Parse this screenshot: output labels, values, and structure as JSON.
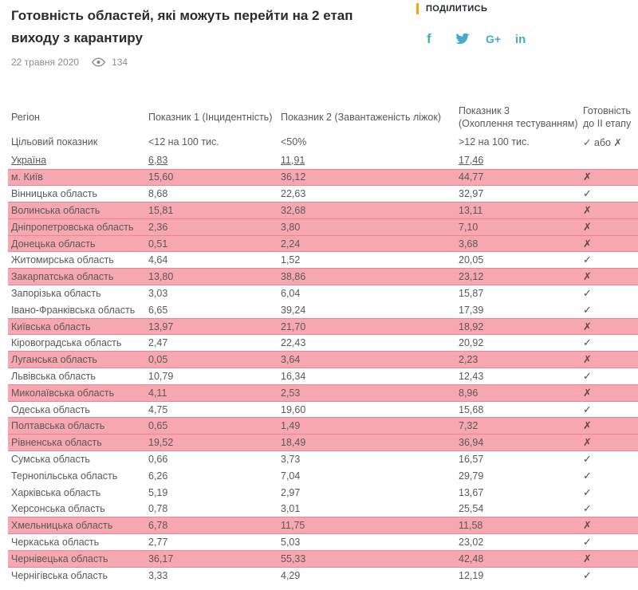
{
  "page": {
    "title": "Готовність областей, які можуть перейти на 2 етап виходу з карантиру",
    "date": "22 травня 2020",
    "views": "134"
  },
  "share": {
    "label": "ПОДІЛИТИСЬ",
    "facebook_glyph": "f",
    "google_plus_glyph": "G+",
    "linkedin_glyph": "in",
    "icons": [
      "facebook",
      "twitter",
      "google-plus",
      "linkedin"
    ]
  },
  "table": {
    "columns": [
      "Регіон",
      "Показник 1 (Інцидентність)",
      "Показник 2 (Завантаженість ліжок)",
      "Показник 3\n(Охоплення тестуванням)",
      "Готовність\nдо II етапу"
    ],
    "target_row": {
      "label": "Цільовий показник",
      "v1": "<12 на 100 тис.",
      "v2": "<50%",
      "v3": ">12 на 100 тис.",
      "ready": "✓ або ✗"
    },
    "ukraine_row": {
      "label": "Україна",
      "v1": "6,83",
      "v2": "11,91",
      "v3": "17,46",
      "ready": ""
    },
    "rows": [
      {
        "region": "м. Київ",
        "v1": "15,60",
        "v2": "36,12",
        "v3": "44,77",
        "ready": "✗",
        "highlighted": true
      },
      {
        "region": "Вінницька область",
        "v1": "8,68",
        "v2": "22,63",
        "v3": "32,97",
        "ready": "✓",
        "highlighted": false
      },
      {
        "region": "Волинська область",
        "v1": "15,81",
        "v2": "32,68",
        "v3": "13,11",
        "ready": "✗",
        "highlighted": true
      },
      {
        "region": "Дніпропетровська область",
        "v1": "2,36",
        "v2": "3,80",
        "v3": "7,10",
        "ready": "✗",
        "highlighted": true
      },
      {
        "region": "Донецька область",
        "v1": "0,51",
        "v2": "2,24",
        "v3": "3,68",
        "ready": "✗",
        "highlighted": true
      },
      {
        "region": "Житомирська область",
        "v1": "4,64",
        "v2": "1,52",
        "v3": "20,05",
        "ready": "✓",
        "highlighted": false
      },
      {
        "region": "Закарпатська область",
        "v1": "13,80",
        "v2": "38,86",
        "v3": "23,12",
        "ready": "✗",
        "highlighted": true
      },
      {
        "region": "Запорізька область",
        "v1": "3,03",
        "v2": "6,04",
        "v3": "15,87",
        "ready": "✓",
        "highlighted": false
      },
      {
        "region": "Івано-Франківська область",
        "v1": "6,65",
        "v2": "39,24",
        "v3": "17,39",
        "ready": "✓",
        "highlighted": false
      },
      {
        "region": "Київська область",
        "v1": "13,97",
        "v2": "21,70",
        "v3": "18,92",
        "ready": "✗",
        "highlighted": true
      },
      {
        "region": "Кіровоградська область",
        "v1": "2,47",
        "v2": "22,43",
        "v3": "20,92",
        "ready": "✓",
        "highlighted": false
      },
      {
        "region": "Луганська область",
        "v1": "0,05",
        "v2": "3,64",
        "v3": "2,23",
        "ready": "✗",
        "highlighted": true
      },
      {
        "region": "Львівська область",
        "v1": "10,79",
        "v2": "16,34",
        "v3": "12,43",
        "ready": "✓",
        "highlighted": false
      },
      {
        "region": "Миколаївська область",
        "v1": "4,11",
        "v2": "2,53",
        "v3": "8,96",
        "ready": "✗",
        "highlighted": true
      },
      {
        "region": "Одеська область",
        "v1": "4,75",
        "v2": "19,60",
        "v3": "15,68",
        "ready": "✓",
        "highlighted": false
      },
      {
        "region": "Полтавська область",
        "v1": "0,65",
        "v2": "1,49",
        "v3": "7,32",
        "ready": "✗",
        "highlighted": true
      },
      {
        "region": "Рівненська область",
        "v1": "19,52",
        "v2": "18,49",
        "v3": "36,94",
        "ready": "✗",
        "highlighted": true
      },
      {
        "region": "Сумська область",
        "v1": "0,66",
        "v2": "3,73",
        "v3": "16,57",
        "ready": "✓",
        "highlighted": false
      },
      {
        "region": "Тернопільська область",
        "v1": "6,26",
        "v2": "7,04",
        "v3": "29,79",
        "ready": "✓",
        "highlighted": false
      },
      {
        "region": "Харківська область",
        "v1": "5,19",
        "v2": "2,97",
        "v3": "13,67",
        "ready": "✓",
        "highlighted": false
      },
      {
        "region": "Херсонська область",
        "v1": "0,78",
        "v2": "3,01",
        "v3": "25,54",
        "ready": "✓",
        "highlighted": false
      },
      {
        "region": "Хмельницька область",
        "v1": "6,78",
        "v2": "11,75",
        "v3": "11,58",
        "ready": "✗",
        "highlighted": true
      },
      {
        "region": "Черкаська область",
        "v1": "2,77",
        "v2": "5,03",
        "v3": "23,02",
        "ready": "✓",
        "highlighted": false
      },
      {
        "region": "Чернівецька область",
        "v1": "36,17",
        "v2": "55,33",
        "v3": "42,48",
        "ready": "✗",
        "highlighted": true
      },
      {
        "region": "Чернігівська область",
        "v1": "3,33",
        "v2": "4,29",
        "v3": "12,19",
        "ready": "✓",
        "highlighted": false
      }
    ]
  },
  "colors": {
    "highlight_bg": "#f7a7b0",
    "highlight_border": "#ec8492",
    "accent_yellow": "#f5a700",
    "social_blue": "#4aa9cb",
    "text_gray": "#595959"
  }
}
